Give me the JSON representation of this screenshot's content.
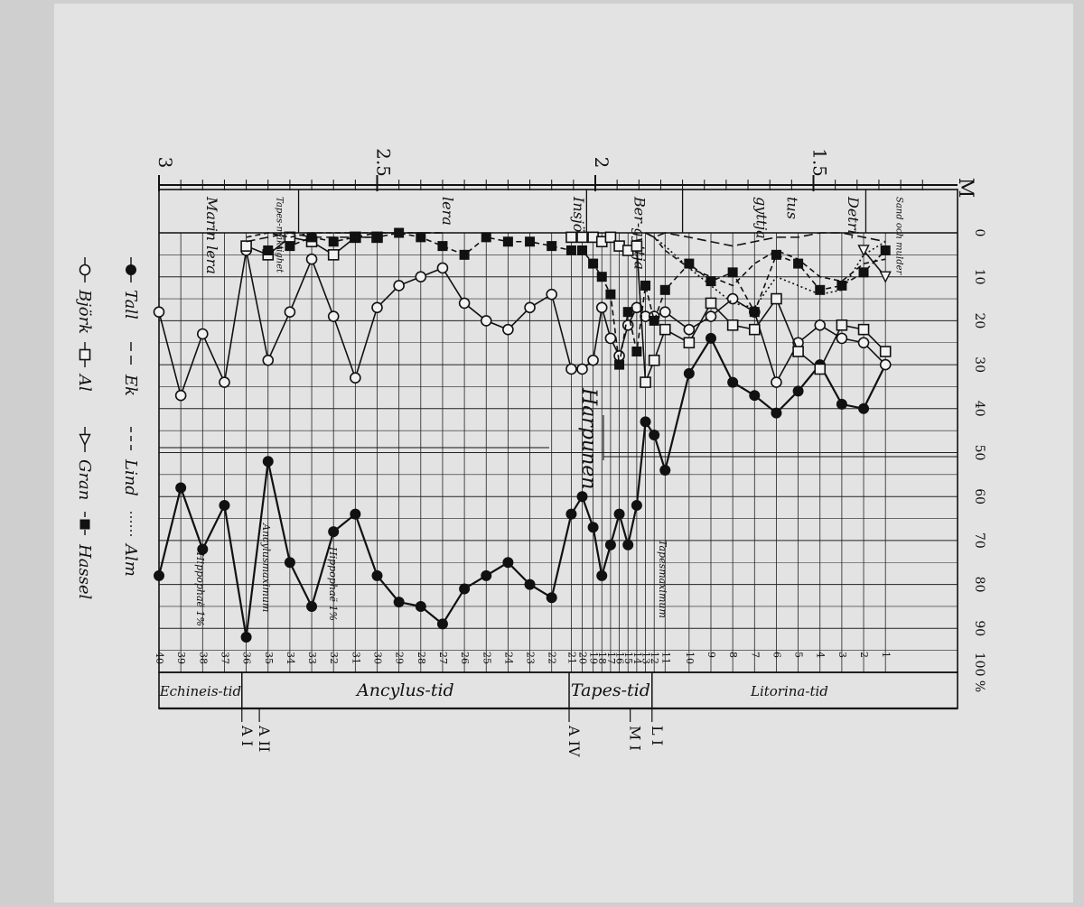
{
  "chart_data": {
    "type": "line",
    "orientation": "rotated-90-clockwise",
    "depth_axis": {
      "unit": "M",
      "ticks": [
        {
          "label": "3",
          "value": 3.0
        },
        {
          "label": "2.5",
          "value": 2.5
        },
        {
          "label": "2",
          "value": 2.0
        },
        {
          "label": "1.5",
          "value": 1.5
        }
      ],
      "range": [
        3.0,
        1.2
      ]
    },
    "percent_axis": {
      "unit": "%",
      "range": [
        0,
        100
      ],
      "ticks": [
        "0",
        "10",
        "20",
        "30",
        "40",
        "50",
        "60",
        "70",
        "80",
        "90",
        "100 %"
      ]
    },
    "samples": {
      "labels": [
        "40",
        "39",
        "38",
        "37",
        "36",
        "35",
        "34",
        "33",
        "32",
        "31",
        "30",
        "29",
        "28",
        "27",
        "26",
        "25",
        "24",
        "23",
        "22",
        "21",
        "20",
        "19",
        "18",
        "17",
        "16",
        "15",
        "14",
        "13",
        "12",
        "11",
        "10",
        "9",
        "8",
        "7",
        "6",
        "5",
        "4",
        "3",
        "2",
        "1"
      ],
      "depth": [
        3.0,
        2.95,
        2.9,
        2.85,
        2.8,
        2.75,
        2.7,
        2.65,
        2.6,
        2.55,
        2.5,
        2.45,
        2.4,
        2.35,
        2.3,
        2.25,
        2.2,
        2.15,
        2.1,
        2.055,
        2.03,
        2.005,
        1.985,
        1.965,
        1.945,
        1.925,
        1.905,
        1.885,
        1.865,
        1.84,
        1.785,
        1.735,
        1.685,
        1.635,
        1.585,
        1.535,
        1.485,
        1.435,
        1.385,
        1.335
      ]
    },
    "series": [
      {
        "name": "Tall",
        "marker": "filled-circle",
        "line": "solid",
        "values": [
          78,
          58,
          72,
          62,
          92,
          52,
          75,
          85,
          68,
          64,
          78,
          84,
          85,
          89,
          81,
          78,
          75,
          80,
          83,
          64,
          60,
          67,
          78,
          71,
          64,
          71,
          62,
          43,
          46,
          54,
          32,
          24,
          34,
          37,
          41,
          36,
          30,
          39,
          40,
          30
        ]
      },
      {
        "name": "Björk",
        "marker": "open-circle",
        "line": "solid",
        "values": [
          18,
          37,
          23,
          34,
          4,
          29,
          18,
          6,
          19,
          33,
          17,
          12,
          10,
          8,
          16,
          20,
          22,
          17,
          14,
          31,
          31,
          29,
          17,
          24,
          28,
          21,
          17,
          19,
          19,
          18,
          22,
          19,
          15,
          18,
          34,
          25,
          21,
          24,
          25,
          30
        ]
      },
      {
        "name": "Al",
        "marker": "open-square",
        "line": "solid",
        "values": [
          null,
          null,
          null,
          null,
          3,
          5,
          1,
          2,
          5,
          1,
          1,
          null,
          null,
          null,
          null,
          null,
          null,
          null,
          null,
          1,
          1,
          1,
          2,
          1,
          3,
          4,
          3,
          34,
          29,
          22,
          25,
          16,
          21,
          22,
          15,
          27,
          31,
          21,
          22,
          27
        ]
      },
      {
        "name": "Ek",
        "marker": "none",
        "line": "dashed-long",
        "values": [
          null,
          null,
          null,
          null,
          2,
          1,
          0,
          1,
          1,
          1,
          0,
          0,
          0,
          0,
          null,
          null,
          null,
          null,
          null,
          null,
          null,
          null,
          null,
          null,
          null,
          null,
          null,
          0,
          1,
          0,
          1,
          2,
          3,
          2,
          1,
          1,
          0,
          0,
          1,
          2
        ]
      },
      {
        "name": "Lind",
        "marker": "none",
        "line": "dashed",
        "values": [
          null,
          null,
          null,
          null,
          1,
          0,
          1,
          0,
          0,
          0,
          0,
          0,
          0,
          0,
          null,
          null,
          null,
          null,
          null,
          null,
          null,
          null,
          null,
          null,
          null,
          null,
          null,
          0,
          1,
          4,
          8,
          10,
          12,
          7,
          4,
          6,
          10,
          11,
          7,
          6
        ]
      },
      {
        "name": "Gran",
        "marker": "open-triangle",
        "line": "solid",
        "values": [
          null,
          null,
          null,
          null,
          null,
          null,
          null,
          null,
          null,
          null,
          null,
          null,
          null,
          null,
          null,
          null,
          null,
          null,
          null,
          null,
          null,
          null,
          null,
          null,
          null,
          null,
          null,
          null,
          null,
          null,
          null,
          null,
          null,
          null,
          null,
          null,
          null,
          null,
          4,
          10
        ]
      },
      {
        "name": "Alm",
        "marker": "none",
        "line": "dotted",
        "values": [
          null,
          null,
          null,
          null,
          null,
          null,
          null,
          null,
          null,
          null,
          null,
          null,
          null,
          null,
          null,
          null,
          null,
          null,
          null,
          null,
          null,
          null,
          null,
          null,
          null,
          null,
          null,
          0,
          1,
          3,
          8,
          12,
          16,
          17,
          10,
          12,
          14,
          13,
          5,
          2
        ]
      },
      {
        "name": "Hassel",
        "marker": "filled-square",
        "line": "dashed",
        "values": [
          null,
          null,
          null,
          null,
          null,
          4,
          3,
          1,
          2,
          1,
          1,
          0,
          1,
          3,
          5,
          1,
          2,
          2,
          3,
          4,
          4,
          7,
          10,
          14,
          30,
          18,
          27,
          12,
          20,
          13,
          7,
          11,
          9,
          18,
          5,
          7,
          13,
          12,
          9,
          4
        ]
      }
    ],
    "legend": [
      {
        "name": "Tall",
        "marker": "filled-circle",
        "line": "solid"
      },
      {
        "name": "Björk",
        "marker": "open-circle",
        "line": "solid"
      },
      {
        "name": "Ek",
        "marker": "none",
        "line": "dashed-long"
      },
      {
        "name": "Al",
        "marker": "open-square",
        "line": "solid"
      },
      {
        "name": "Lind",
        "marker": "none",
        "line": "dashed"
      },
      {
        "name": "Gran",
        "marker": "open-triangle",
        "line": "solid"
      },
      {
        "name": "Alm",
        "marker": "none",
        "line": "dotted"
      },
      {
        "name": "Hassel",
        "marker": "filled-square",
        "line": "dashed"
      }
    ],
    "sediment_zones": [
      {
        "label": "Marin lera",
        "from": 3.0,
        "to": 2.78
      },
      {
        "label": "Tapes-mäktighet",
        "from": 2.78,
        "to": 2.68
      },
      {
        "label": "lera",
        "from": 2.68,
        "to": 2.02
      },
      {
        "label": "Insjö",
        "from": 2.08,
        "to": 2.02
      },
      {
        "label": "Ber-gyttja",
        "from": 2.02,
        "to": 1.8
      },
      {
        "label": "gyttja",
        "from": 1.8,
        "to": 1.46
      },
      {
        "label": "tus",
        "from": 1.62,
        "to": 1.5
      },
      {
        "label": "Detri-",
        "from": 1.46,
        "to": 1.38
      },
      {
        "label": "Sand och mulder",
        "from": 1.38,
        "to": 1.24
      }
    ],
    "periods": [
      {
        "label": "Echineis-tid",
        "from": 3.0,
        "to": 2.81
      },
      {
        "label": "Ancylus-tid",
        "from": 2.81,
        "to": 2.06
      },
      {
        "label": "Tapes-tid",
        "from": 2.06,
        "to": 1.87
      },
      {
        "label": "Litorina-tid",
        "from": 1.87,
        "to": 1.24
      }
    ],
    "boundary_markers": [
      {
        "label": "A I",
        "depth": 2.81
      },
      {
        "label": "A II",
        "depth": 2.77
      },
      {
        "label": "A IV",
        "depth": 2.06
      },
      {
        "label": "M I",
        "depth": 1.92
      },
      {
        "label": "L I",
        "depth": 1.87
      }
    ],
    "annotations": [
      {
        "text": "Hippophaë 1%",
        "sample": "38"
      },
      {
        "text": "Ancylusmaximum",
        "sample": "35"
      },
      {
        "text": "Hippophaë 1%",
        "sample": "32"
      },
      {
        "text": "Harpunen",
        "sample": "21"
      },
      {
        "text": "Tapesmaximum",
        "sample": "13"
      }
    ]
  }
}
